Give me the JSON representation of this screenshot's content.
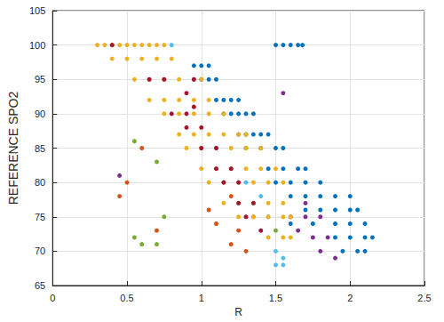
{
  "chart_data": {
    "type": "scatter",
    "x_label": "R",
    "y_label": "REFERENCE SPO2",
    "xlim": [
      0,
      2.5
    ],
    "xticks": [
      0,
      0.5,
      1,
      1.5,
      2,
      2.5
    ],
    "ylim": [
      65,
      105
    ],
    "yticks": [
      65,
      70,
      75,
      80,
      85,
      90,
      95,
      100,
      105
    ],
    "grid": true,
    "marker": "circle",
    "series": [
      {
        "color": "#0072bd",
        "x": [
          1.5,
          1.55,
          1.6,
          1.65,
          1.68,
          0.95,
          1.0,
          1.05,
          1.0,
          1.05,
          1.1,
          1.1,
          1.15,
          1.2,
          1.25,
          1.15,
          1.2,
          1.25,
          1.3,
          1.35,
          1.25,
          1.3,
          1.35,
          1.4,
          1.45,
          1.3,
          1.4,
          1.5,
          1.55,
          1.45,
          1.55,
          1.65,
          1.7,
          1.5,
          1.6,
          1.7,
          1.8,
          1.6,
          1.7,
          1.8,
          1.9,
          2.0,
          1.7,
          1.8,
          1.9,
          2.0,
          2.05,
          1.6,
          1.75,
          1.9,
          2.0,
          2.1,
          1.9,
          2.0,
          2.1,
          2.15,
          1.95,
          2.05,
          2.1
        ],
        "values": [
          100,
          100,
          100,
          100,
          100,
          97,
          97,
          97,
          95,
          95,
          95,
          92,
          92,
          92,
          92,
          90,
          90,
          90,
          90,
          90,
          87,
          87,
          87,
          87,
          87,
          85,
          85,
          85,
          85,
          82,
          82,
          82,
          82,
          80,
          80,
          80,
          80,
          78,
          78,
          78,
          78,
          78,
          76,
          76,
          76,
          76,
          76,
          74,
          74,
          74,
          74,
          74,
          72,
          72,
          72,
          72,
          70,
          70,
          70
        ]
      },
      {
        "color": "#d95319",
        "x": [
          0.5,
          0.45,
          0.7,
          1.2,
          1.05,
          1.1,
          1.25,
          1.35,
          0.6,
          1.3,
          1.2
        ],
        "values": [
          80,
          78,
          73,
          71,
          76,
          74,
          73,
          75,
          85,
          70,
          78
        ]
      },
      {
        "color": "#7e2f8e",
        "x": [
          1.6,
          1.7,
          1.8,
          1.65,
          1.75,
          1.85,
          1.8,
          1.9,
          1.55,
          0.45,
          1.7
        ],
        "values": [
          75,
          75,
          75,
          73,
          72,
          72,
          70,
          69,
          93,
          81,
          77
        ]
      },
      {
        "color": "#77ac30",
        "x": [
          0.6,
          0.7,
          0.55,
          0.55,
          0.75,
          1.35,
          1.5,
          0.7
        ],
        "values": [
          71,
          71,
          72,
          86,
          75,
          77,
          73,
          83
        ]
      },
      {
        "color": "#4dbeee",
        "x": [
          0.8,
          1.3,
          1.45,
          1.5,
          1.55,
          1.5,
          1.55,
          1.4
        ],
        "values": [
          100,
          80,
          75,
          70,
          69,
          68,
          68,
          78
        ]
      },
      {
        "color": "#edb120",
        "x": [
          0.3,
          0.35,
          0.4,
          0.45,
          0.5,
          0.55,
          0.6,
          0.65,
          0.7,
          0.75,
          0.4,
          0.5,
          0.6,
          0.7,
          0.8,
          0.55,
          0.65,
          0.75,
          0.85,
          0.95,
          1.0,
          0.65,
          0.75,
          0.85,
          0.95,
          1.05,
          0.75,
          0.85,
          0.95,
          1.05,
          1.15,
          0.85,
          0.95,
          1.05,
          1.15,
          1.25,
          1.3,
          0.9,
          1.0,
          1.1,
          1.2,
          1.3,
          1.4,
          1.0,
          1.1,
          1.2,
          1.3,
          1.4,
          1.5,
          1.05,
          1.15,
          1.25,
          1.35,
          1.45,
          1.55,
          1.15,
          1.25,
          1.35,
          1.45,
          1.55,
          1.25,
          1.35,
          1.45,
          1.55,
          1.6,
          1.45,
          1.55,
          1.6
        ],
        "values": [
          100,
          100,
          100,
          100,
          100,
          100,
          100,
          100,
          100,
          100,
          98,
          98,
          98,
          98,
          98,
          95,
          95,
          95,
          95,
          95,
          95,
          92,
          92,
          92,
          92,
          92,
          90,
          90,
          90,
          90,
          90,
          87,
          87,
          87,
          87,
          87,
          87,
          85,
          85,
          85,
          85,
          85,
          85,
          82,
          82,
          82,
          82,
          82,
          82,
          80,
          80,
          80,
          80,
          80,
          80,
          77,
          77,
          77,
          77,
          77,
          75,
          75,
          75,
          75,
          75,
          72,
          72,
          72
        ]
      },
      {
        "color": "#a2142f",
        "x": [
          0.4,
          0.65,
          0.75,
          0.95,
          0.9,
          0.95,
          0.8,
          0.9,
          0.9,
          1.0,
          1.0,
          1.1,
          1.1,
          1.2,
          1.15,
          1.25,
          1.25,
          1.35,
          1.3,
          1.4
        ],
        "values": [
          100,
          95,
          95,
          95,
          93,
          91,
          90,
          90,
          88,
          88,
          85,
          85,
          82,
          82,
          80,
          80,
          77,
          77,
          75,
          73
        ]
      }
    ]
  }
}
